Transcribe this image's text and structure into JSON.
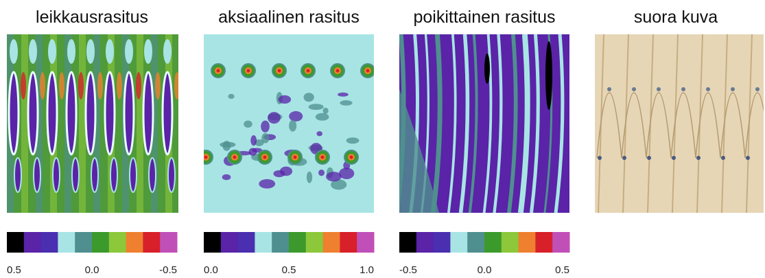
{
  "panels": [
    {
      "title": "leikkausrasitus",
      "colorbar": {
        "labels": [
          "0.5",
          "0.0",
          "-0.5"
        ]
      }
    },
    {
      "title": "aksiaalinen rasitus",
      "colorbar": {
        "labels": [
          "0.0",
          "0.5",
          "1.0"
        ]
      }
    },
    {
      "title": "poikittainen rasitus",
      "colorbar": {
        "labels": [
          "-0.5",
          "0.0",
          "0.5"
        ]
      }
    }
  ],
  "colorbar_colors": [
    "#000000",
    "#5a23a8",
    "#4a2fb0",
    "#a8e4e4",
    "#4f8f8f",
    "#3c9a2c",
    "#8cc83a",
    "#ee8030",
    "#d8202a",
    "#c050b8"
  ],
  "photo": {
    "title": "suora kuva"
  }
}
